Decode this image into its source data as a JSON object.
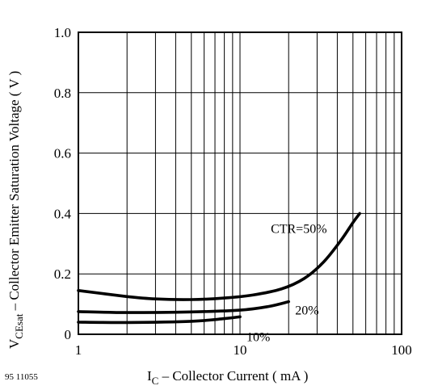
{
  "figure_code": "95 11055",
  "chart_data": {
    "type": "line",
    "xscale": "log",
    "xlim": [
      1,
      100
    ],
    "ylim": [
      0,
      1.0
    ],
    "grid": true,
    "x_ticks": [
      1,
      10,
      100
    ],
    "x_tick_labels": [
      "1",
      "10",
      "100"
    ],
    "y_ticks": [
      0,
      0.2,
      0.4,
      0.6,
      0.8,
      1.0
    ],
    "y_tick_labels": [
      "0",
      "0.2",
      "0.4",
      "0.6",
      "0.8",
      "1.0"
    ],
    "xlabel": {
      "main": "I",
      "sub": "C",
      "rest": " – Collector Current ( mA )"
    },
    "ylabel": {
      "main": "V",
      "sub": "CEsat",
      "rest": " – Collector Emitter Saturation Voltage ( V )"
    },
    "series": [
      {
        "name": "CTR=50%",
        "x": [
          1,
          2,
          3,
          5,
          8,
          12,
          18,
          25,
          33,
          42,
          50,
          55
        ],
        "y": [
          0.145,
          0.125,
          0.117,
          0.115,
          0.12,
          0.13,
          0.15,
          0.185,
          0.24,
          0.31,
          0.37,
          0.4
        ]
      },
      {
        "name": "20%",
        "x": [
          1,
          2,
          5,
          10,
          15,
          20
        ],
        "y": [
          0.075,
          0.072,
          0.074,
          0.08,
          0.092,
          0.108
        ]
      },
      {
        "name": "10%",
        "x": [
          1,
          2,
          5,
          8,
          10
        ],
        "y": [
          0.04,
          0.039,
          0.043,
          0.052,
          0.058
        ]
      }
    ]
  }
}
